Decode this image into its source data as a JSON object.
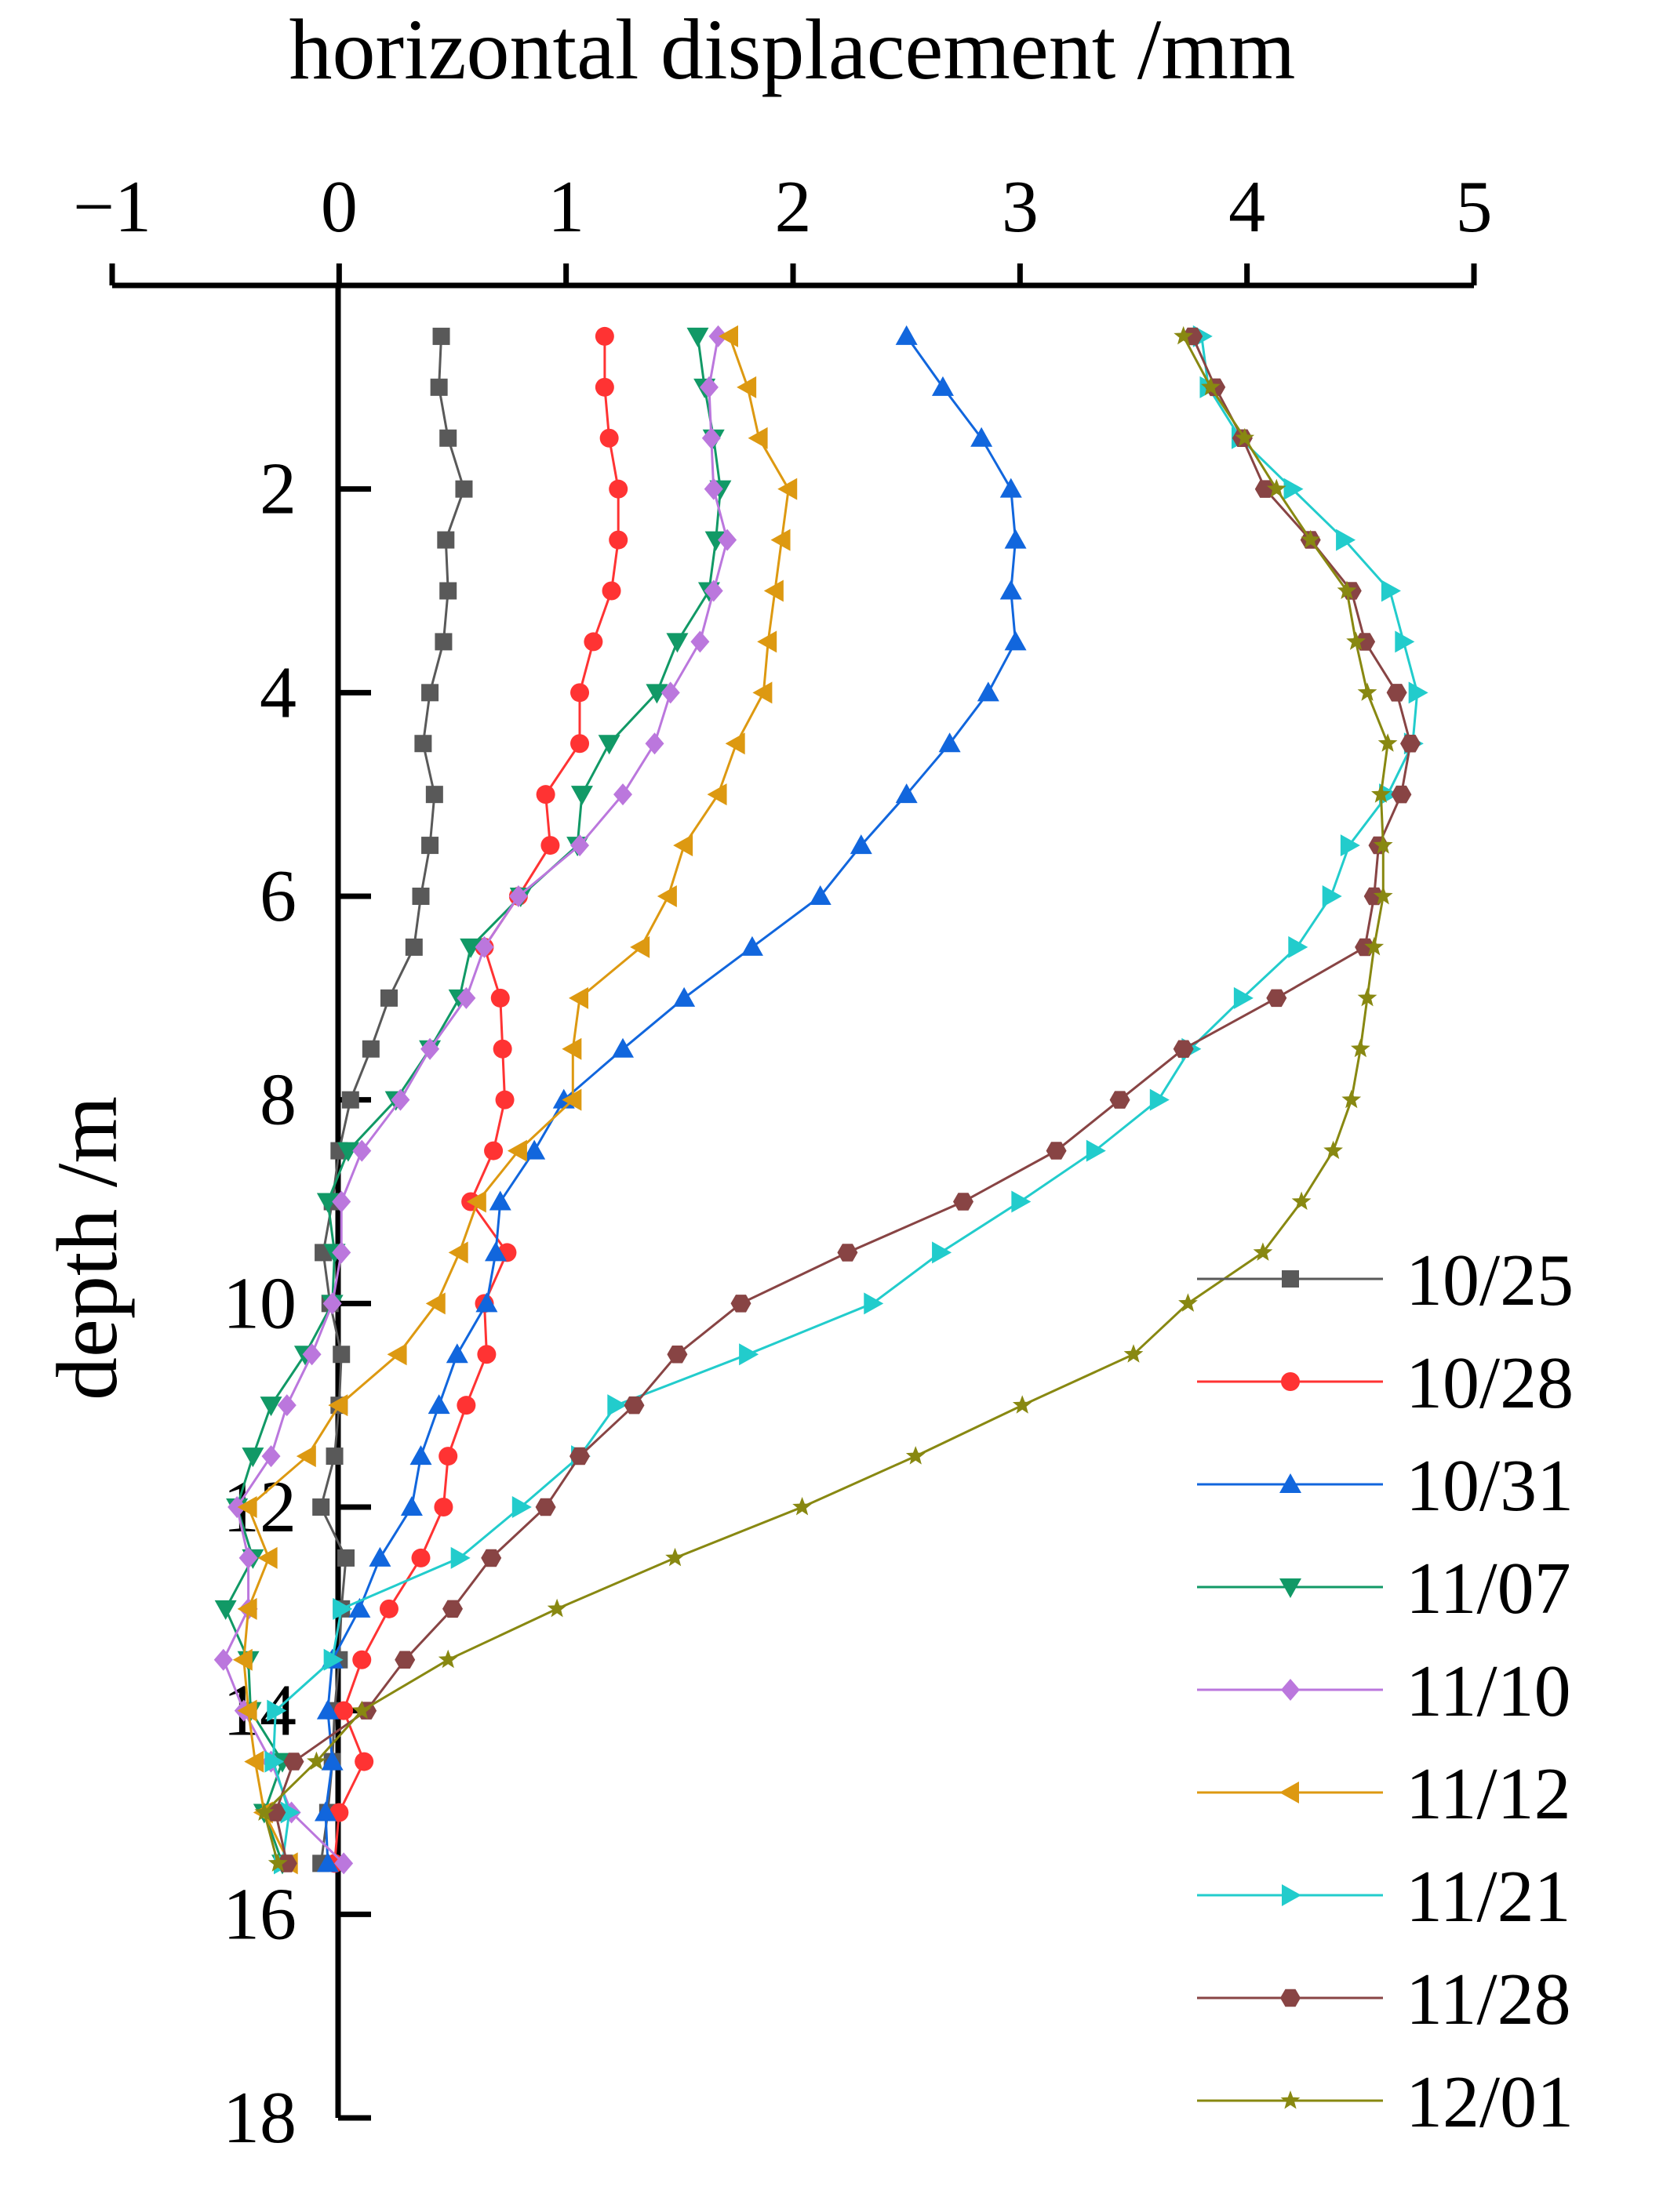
{
  "chart_data": {
    "type": "line",
    "x_axis_title": "horizontal displacement /mm",
    "y_axis_title": "depth /m",
    "xlim": [
      -1,
      5
    ],
    "ylim": [
      0,
      18
    ],
    "x_ticks": [
      -1,
      0,
      1,
      2,
      3,
      4,
      5
    ],
    "x_tick_labels": [
      "−1",
      "0",
      "1",
      "2",
      "3",
      "4",
      "5"
    ],
    "y_ticks": [
      2,
      4,
      6,
      8,
      10,
      12,
      14,
      16,
      18
    ],
    "y_tick_labels": [
      "2",
      "4",
      "6",
      "8",
      "10",
      "12",
      "14",
      "16",
      "18"
    ],
    "depths": [
      0.5,
      1.0,
      1.5,
      2.0,
      2.5,
      3.0,
      3.5,
      4.0,
      4.5,
      5.0,
      5.5,
      6.0,
      6.5,
      7.0,
      7.5,
      8.0,
      8.5,
      9.0,
      9.5,
      10.0,
      10.5,
      11.0,
      11.5,
      12.0,
      12.5,
      13.0,
      13.5,
      14.0,
      14.5,
      15.0,
      15.5
    ],
    "legend_position": "bottom-right",
    "series": [
      {
        "name": "10/25",
        "color": "#595959",
        "marker": "square",
        "values": [
          0.45,
          0.44,
          0.48,
          0.55,
          0.47,
          0.48,
          0.46,
          0.4,
          0.37,
          0.42,
          0.4,
          0.36,
          0.33,
          0.22,
          0.14,
          0.05,
          0.0,
          -0.03,
          -0.07,
          -0.04,
          0.01,
          0.0,
          -0.02,
          -0.08,
          0.03,
          0.01,
          0.0,
          -0.02,
          -0.03,
          -0.05,
          -0.08
        ]
      },
      {
        "name": "10/28",
        "color": "#ff3333",
        "marker": "circle",
        "values": [
          1.17,
          1.17,
          1.19,
          1.23,
          1.23,
          1.2,
          1.12,
          1.06,
          1.06,
          0.91,
          0.93,
          0.79,
          0.64,
          0.71,
          0.72,
          0.73,
          0.68,
          0.58,
          0.74,
          0.64,
          0.65,
          0.56,
          0.48,
          0.46,
          0.36,
          0.22,
          0.1,
          0.02,
          0.11,
          0.0,
          -0.02
        ]
      },
      {
        "name": "10/31",
        "color": "#1166dd",
        "marker": "triangle-up",
        "values": [
          2.5,
          2.66,
          2.83,
          2.96,
          2.98,
          2.96,
          2.98,
          2.86,
          2.69,
          2.5,
          2.3,
          2.12,
          1.82,
          1.52,
          1.25,
          0.99,
          0.86,
          0.71,
          0.69,
          0.65,
          0.52,
          0.44,
          0.36,
          0.32,
          0.18,
          0.09,
          -0.03,
          -0.05,
          -0.03,
          -0.06,
          -0.05
        ]
      },
      {
        "name": "11/07",
        "color": "#119966",
        "marker": "triangle-down",
        "values": [
          1.58,
          1.61,
          1.65,
          1.68,
          1.66,
          1.63,
          1.49,
          1.4,
          1.19,
          1.07,
          1.05,
          0.8,
          0.58,
          0.53,
          0.4,
          0.25,
          0.04,
          -0.05,
          -0.02,
          -0.03,
          -0.15,
          -0.3,
          -0.38,
          -0.45,
          -0.38,
          -0.5,
          -0.4,
          -0.39,
          -0.25,
          -0.33,
          -0.25
        ]
      },
      {
        "name": "11/10",
        "color": "#bb77dd",
        "marker": "diamond",
        "values": [
          1.67,
          1.63,
          1.64,
          1.65,
          1.71,
          1.65,
          1.59,
          1.46,
          1.39,
          1.25,
          1.06,
          0.79,
          0.64,
          0.56,
          0.4,
          0.27,
          0.1,
          0.01,
          0.01,
          -0.03,
          -0.12,
          -0.23,
          -0.3,
          -0.45,
          -0.4,
          -0.4,
          -0.51,
          -0.42,
          -0.3,
          -0.21,
          0.02
        ]
      },
      {
        "name": "11/12",
        "color": "#dd9911",
        "marker": "triangle-left",
        "values": [
          1.72,
          1.8,
          1.85,
          1.98,
          1.95,
          1.92,
          1.89,
          1.87,
          1.75,
          1.67,
          1.52,
          1.45,
          1.33,
          1.06,
          1.03,
          1.03,
          0.79,
          0.61,
          0.53,
          0.43,
          0.26,
          0.0,
          -0.14,
          -0.4,
          -0.31,
          -0.4,
          -0.42,
          -0.4,
          -0.37,
          -0.33,
          -0.22
        ]
      },
      {
        "name": "11/21",
        "color": "#22cccc",
        "marker": "triangle-right",
        "values": [
          3.8,
          3.83,
          3.97,
          4.2,
          4.43,
          4.63,
          4.69,
          4.75,
          4.73,
          4.62,
          4.45,
          4.37,
          4.22,
          3.98,
          3.75,
          3.61,
          3.33,
          3.0,
          2.65,
          2.35,
          1.8,
          1.22,
          1.06,
          0.8,
          0.53,
          0.01,
          -0.03,
          -0.28,
          -0.29,
          -0.22,
          -0.25
        ]
      },
      {
        "name": "11/28",
        "color": "#884444",
        "marker": "hexagon",
        "values": [
          3.76,
          3.86,
          3.98,
          4.08,
          4.28,
          4.46,
          4.52,
          4.66,
          4.72,
          4.68,
          4.58,
          4.56,
          4.52,
          4.13,
          3.72,
          3.44,
          3.16,
          2.75,
          2.24,
          1.77,
          1.49,
          1.3,
          1.06,
          0.91,
          0.67,
          0.5,
          0.29,
          0.12,
          -0.2,
          -0.28,
          -0.23
        ]
      },
      {
        "name": "12/01",
        "color": "#888811",
        "marker": "star",
        "values": [
          3.72,
          3.84,
          3.99,
          4.13,
          4.28,
          4.44,
          4.48,
          4.53,
          4.62,
          4.59,
          4.6,
          4.6,
          4.56,
          4.53,
          4.5,
          4.46,
          4.38,
          4.24,
          4.07,
          3.74,
          3.5,
          3.01,
          2.54,
          2.04,
          1.48,
          0.96,
          0.48,
          0.1,
          -0.1,
          -0.33,
          -0.27
        ]
      }
    ]
  }
}
